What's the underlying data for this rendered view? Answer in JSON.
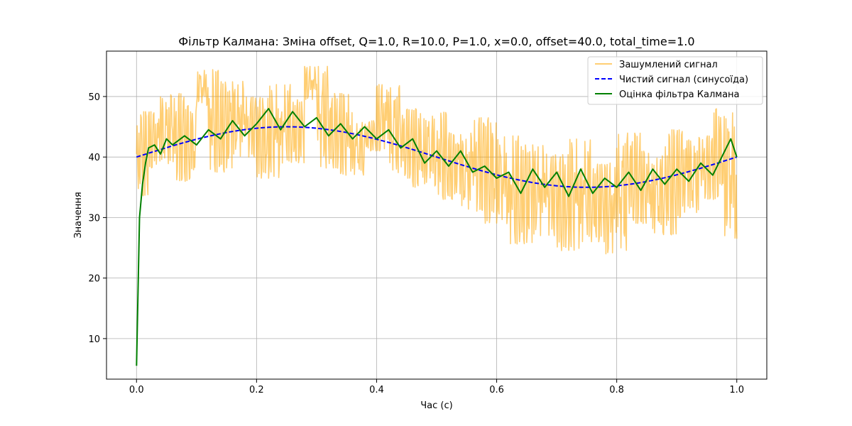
{
  "chart_data": {
    "type": "line",
    "title": "Фільтр Калмана: Зміна offset, Q=1.0, R=10.0, P=1.0, x=0.0, offset=40.0, total_time=1.0",
    "xlabel": "Час (с)",
    "ylabel": "Значення",
    "xlim": [
      -0.05,
      1.05
    ],
    "ylim": [
      3.3,
      57.5
    ],
    "xticks": [
      0.0,
      0.2,
      0.4,
      0.6,
      0.8,
      1.0
    ],
    "xtick_labels": [
      "0.0",
      "0.2",
      "0.4",
      "0.6",
      "0.8",
      "1.0"
    ],
    "yticks": [
      10,
      20,
      30,
      40,
      50
    ],
    "ytick_labels": [
      "10",
      "20",
      "30",
      "40",
      "50"
    ],
    "grid": true,
    "legend_position": "top-right",
    "clean_signal": {
      "amplitude": 5,
      "offset": 40,
      "frequency": 1
    },
    "series": [
      {
        "name": "Зашумлений сигнал",
        "color": "#ffa500",
        "style": "solid",
        "x": [
          0.0,
          0.02,
          0.04,
          0.06,
          0.08,
          0.1,
          0.12,
          0.14,
          0.16,
          0.18,
          0.2,
          0.22,
          0.24,
          0.26,
          0.28,
          0.3,
          0.32,
          0.34,
          0.36,
          0.38,
          0.4,
          0.42,
          0.44,
          0.46,
          0.48,
          0.5,
          0.52,
          0.54,
          0.56,
          0.58,
          0.6,
          0.62,
          0.64,
          0.66,
          0.68,
          0.7,
          0.72,
          0.74,
          0.76,
          0.78,
          0.8,
          0.82,
          0.84,
          0.86,
          0.88,
          0.9,
          0.92,
          0.94,
          0.96,
          0.98,
          1.0
        ],
        "y": [
          33.5,
          47.5,
          38.2,
          50.5,
          36.0,
          48.5,
          54.5,
          37.5,
          52.5,
          40.0,
          50.0,
          36.5,
          52.0,
          39.0,
          49.5,
          55.0,
          38.0,
          50.5,
          37.0,
          46.0,
          41.0,
          52.0,
          36.5,
          48.0,
          35.0,
          47.5,
          33.0,
          44.0,
          31.0,
          46.5,
          29.0,
          43.5,
          25.5,
          42.0,
          27.0,
          40.5,
          24.5,
          43.0,
          26.0,
          39.0,
          24.0,
          44.0,
          29.0,
          41.0,
          27.0,
          44.5,
          30.0,
          43.5,
          33.0,
          48.0,
          26.5
        ]
      },
      {
        "name": "Чистий сигнал (синусоїда)",
        "color": "#0000ff",
        "style": "dashed",
        "x": [
          0.0,
          0.05,
          0.1,
          0.15,
          0.2,
          0.25,
          0.3,
          0.35,
          0.4,
          0.45,
          0.5,
          0.55,
          0.6,
          0.65,
          0.7,
          0.75,
          0.8,
          0.85,
          0.9,
          0.95,
          1.0
        ],
        "y": [
          40.0,
          41.55,
          42.94,
          44.05,
          44.76,
          45.0,
          44.76,
          44.05,
          42.94,
          41.55,
          40.0,
          38.45,
          37.06,
          35.95,
          35.24,
          35.0,
          35.24,
          35.95,
          37.06,
          38.45,
          40.0
        ]
      },
      {
        "name": "Оцінка фільтра Калмана",
        "color": "#008000",
        "style": "solid",
        "x": [
          0.0,
          0.005,
          0.01,
          0.015,
          0.02,
          0.03,
          0.04,
          0.05,
          0.06,
          0.08,
          0.1,
          0.12,
          0.14,
          0.16,
          0.18,
          0.2,
          0.22,
          0.24,
          0.26,
          0.28,
          0.3,
          0.32,
          0.34,
          0.36,
          0.38,
          0.4,
          0.42,
          0.44,
          0.46,
          0.48,
          0.5,
          0.52,
          0.54,
          0.56,
          0.58,
          0.6,
          0.62,
          0.64,
          0.66,
          0.68,
          0.7,
          0.72,
          0.74,
          0.76,
          0.78,
          0.8,
          0.82,
          0.84,
          0.86,
          0.88,
          0.9,
          0.92,
          0.94,
          0.96,
          0.98,
          0.99,
          1.0
        ],
        "y": [
          5.5,
          30.0,
          35.5,
          39.0,
          41.5,
          42.0,
          40.5,
          43.0,
          42.0,
          43.5,
          42.0,
          44.5,
          43.0,
          46.0,
          43.5,
          45.5,
          48.0,
          44.5,
          47.5,
          45.0,
          46.5,
          43.5,
          45.5,
          43.0,
          45.0,
          43.0,
          44.5,
          41.5,
          43.0,
          39.0,
          41.0,
          38.5,
          41.0,
          37.5,
          38.5,
          36.5,
          37.5,
          34.0,
          38.0,
          35.0,
          37.5,
          33.5,
          38.0,
          34.0,
          36.5,
          35.0,
          37.5,
          34.5,
          38.0,
          35.5,
          38.0,
          36.0,
          39.0,
          37.0,
          41.0,
          43.0,
          40.0
        ]
      }
    ]
  }
}
